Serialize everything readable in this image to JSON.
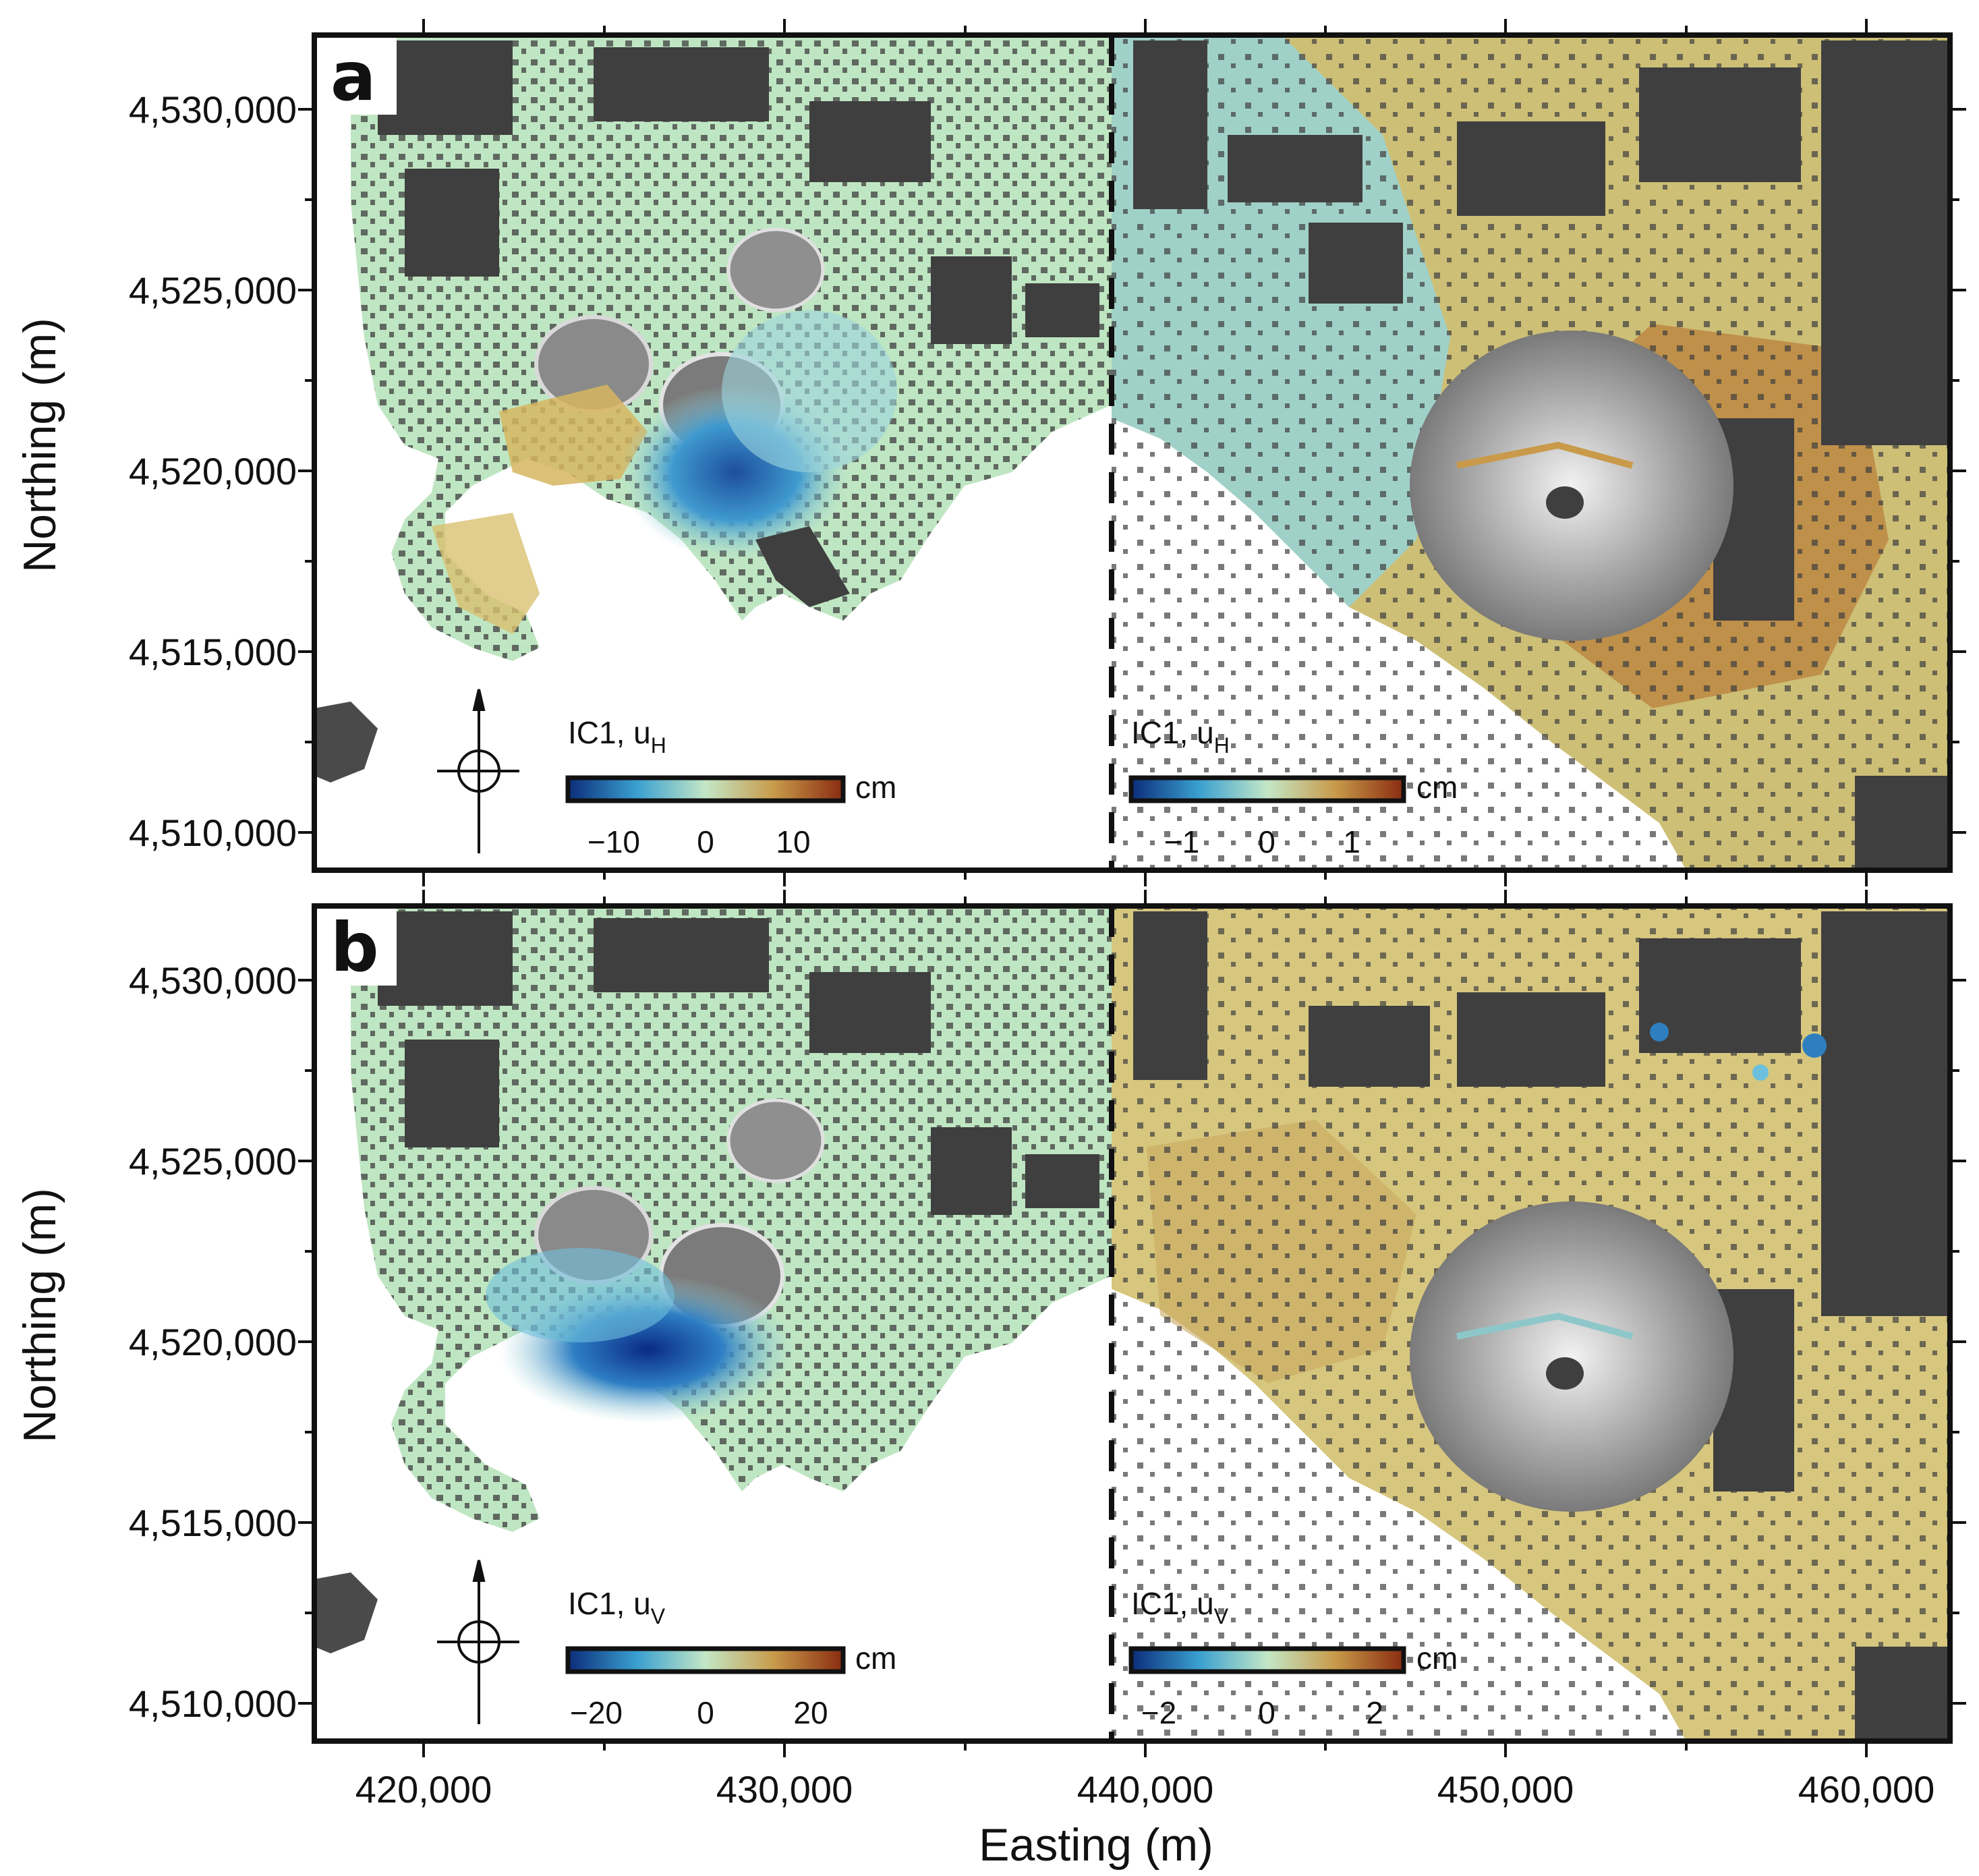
{
  "figure": {
    "x_axis_title": "Easting (m)",
    "y_axis_title": "Northing (m)",
    "x_ticks": [
      "420,000",
      "430,000",
      "440,000",
      "450,000",
      "460,000"
    ],
    "y_ticks": [
      "4,530,000",
      "4,525,000",
      "4,520,000",
      "4,515,000",
      "4,510,000"
    ]
  },
  "panels": [
    {
      "letter": "a",
      "left_colorbar": {
        "title": "IC1, u",
        "subscript": "H",
        "unit": "cm",
        "ticks": [
          "−10",
          "0",
          "10"
        ]
      },
      "right_colorbar": {
        "title": "IC1, u",
        "subscript": "H",
        "unit": "cm",
        "ticks": [
          "−1",
          "0",
          "1"
        ]
      }
    },
    {
      "letter": "b",
      "left_colorbar": {
        "title": "IC1, u",
        "subscript": "V",
        "unit": "cm",
        "ticks": [
          "−20",
          "0",
          "20"
        ]
      },
      "right_colorbar": {
        "title": "IC1, u",
        "subscript": "V",
        "unit": "cm",
        "ticks": [
          "−2",
          "0",
          "2"
        ]
      }
    }
  ],
  "colors": {
    "hillshade": "#3f3f3f",
    "neutral_land": "#bfe6c2",
    "cmap_low": "#0b2c7a",
    "cmap_mid": "#c3e7c6",
    "cmap_high": "#8a2b10",
    "axes": "#111111"
  }
}
